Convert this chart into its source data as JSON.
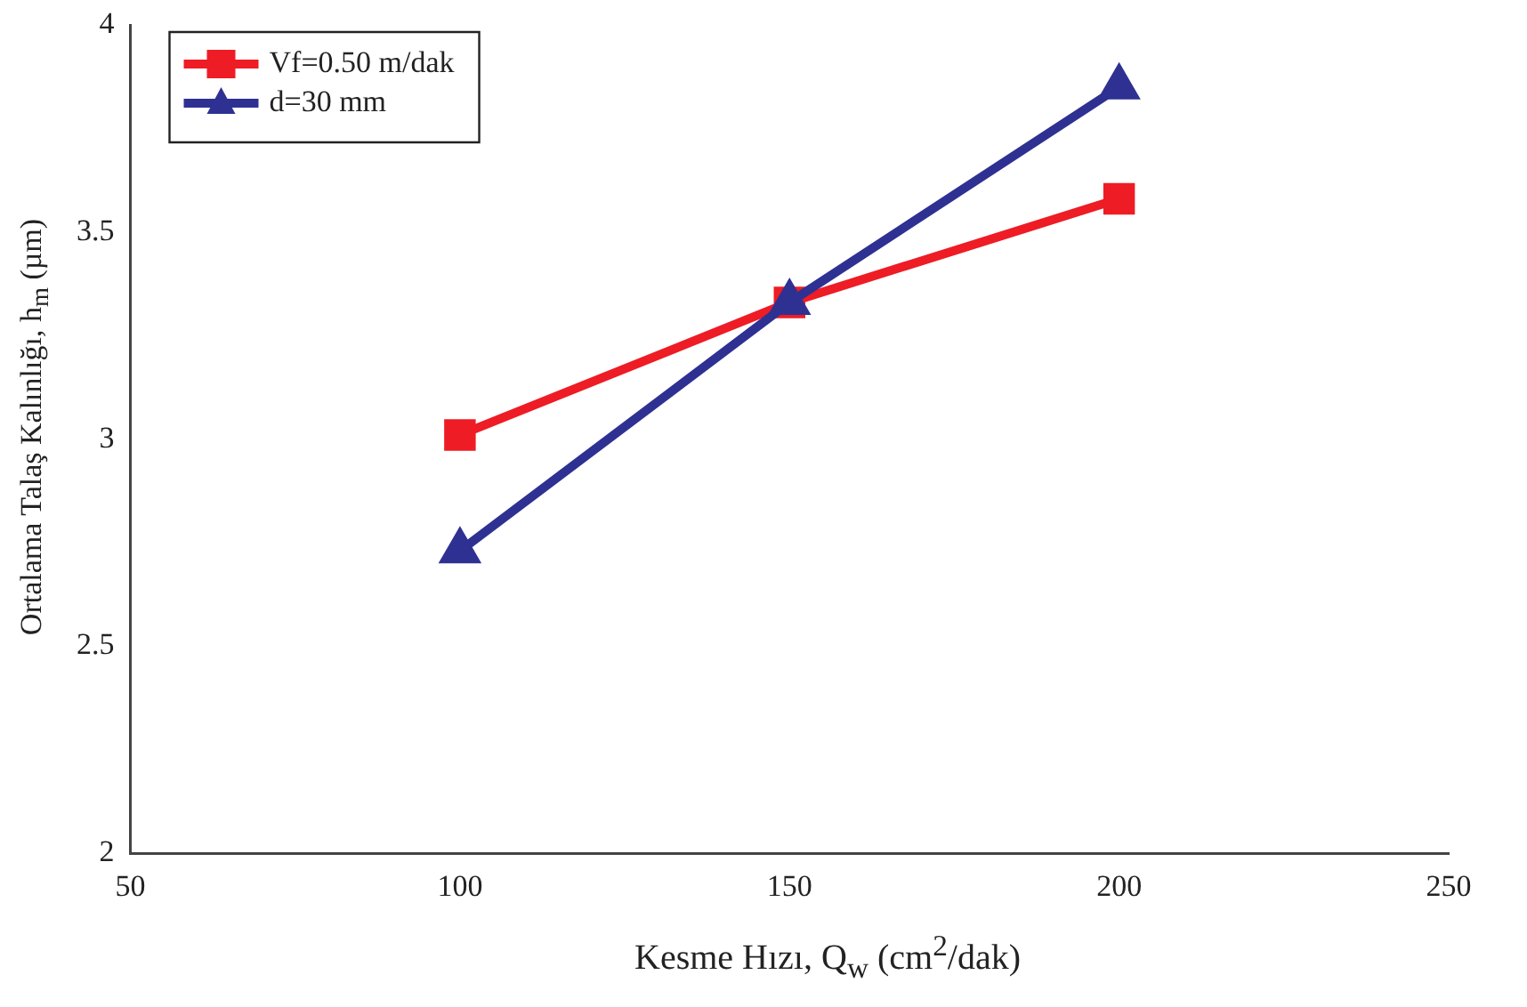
{
  "chart_data": {
    "type": "line",
    "xlabel": "Kesme Hızı, Q$_{w}$ (cm$^{2}$/dak)",
    "ylabel": "Ortalama Talaş Kalınlığı, h$_{m}$ (µm)",
    "x": [
      100,
      150,
      200
    ],
    "series": [
      {
        "name": "Vf=0.50 m/dak",
        "color": "#ee1c25",
        "marker": "square",
        "values": [
          3.01,
          3.33,
          3.58
        ]
      },
      {
        "name": "d=30 mm",
        "color": "#2e3192",
        "marker": "triangle",
        "values": [
          2.73,
          3.33,
          3.85
        ]
      }
    ],
    "xlim": [
      50,
      250
    ],
    "xticks": [
      50,
      100,
      150,
      200,
      250
    ],
    "ylim": [
      2,
      4
    ],
    "yticks": [
      2,
      2.5,
      3,
      3.5,
      4
    ],
    "grid": false,
    "legend": "top left",
    "line_style": "solid"
  }
}
